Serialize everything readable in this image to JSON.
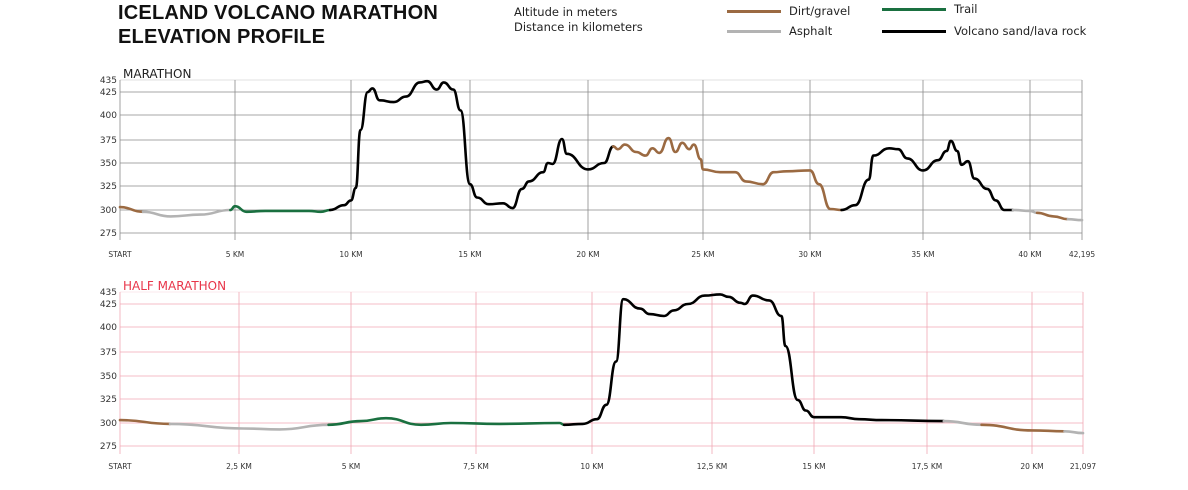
{
  "header": {
    "title_line1": "ICELAND VOLCANO MARATHON",
    "title_line2": "ELEVATION PROFILE",
    "units_line1": "Altitude in meters",
    "units_line2": "Distance in kilometers"
  },
  "legend": [
    {
      "label": "Dirt/gravel",
      "surface": "dirt",
      "color": "#9b6a42"
    },
    {
      "label": "Trail",
      "surface": "trail",
      "color": "#1a7040"
    },
    {
      "label": "Asphalt",
      "surface": "asphalt",
      "color": "#b3b3b3"
    },
    {
      "label": "Volcano sand/lava rock",
      "surface": "lava",
      "color": "#000000"
    }
  ],
  "chart_data": [
    {
      "type": "line",
      "title": "MARATHON",
      "title_color": "#222222",
      "grid_color": "#8a8a8a",
      "grid": true,
      "xlim": [
        0,
        42.195
      ],
      "ylim": [
        275,
        435
      ],
      "y_ticks": [
        435,
        425,
        400,
        375,
        350,
        325,
        300,
        275
      ],
      "x_ticks": [
        {
          "value": 0,
          "label": "START"
        },
        {
          "value": 5,
          "label": "5 KM"
        },
        {
          "value": 10,
          "label": "10 KM"
        },
        {
          "value": 15,
          "label": "15 KM"
        },
        {
          "value": 20,
          "label": "20 KM"
        },
        {
          "value": 25,
          "label": "25 KM"
        },
        {
          "value": 30,
          "label": "30 KM"
        },
        {
          "value": 35,
          "label": "35 KM"
        },
        {
          "value": 40,
          "label": "40 KM"
        },
        {
          "value": 42.195,
          "label": "42,195"
        }
      ],
      "segments": [
        {
          "surface": "dirt",
          "points": [
            [
              0,
              303
            ],
            [
              1.0,
              298
            ]
          ]
        },
        {
          "surface": "asphalt",
          "points": [
            [
              1.0,
              298
            ],
            [
              2.2,
              293
            ],
            [
              3.5,
              295
            ],
            [
              4.8,
              300
            ]
          ]
        },
        {
          "surface": "trail",
          "points": [
            [
              4.8,
              300
            ],
            [
              5,
              304
            ],
            [
              5.5,
              298
            ],
            [
              6.3,
              299
            ],
            [
              7.3,
              299
            ],
            [
              8.2,
              299
            ],
            [
              8.7,
              298
            ],
            [
              9.1,
              300
            ]
          ]
        },
        {
          "surface": "lava",
          "points": [
            [
              9.1,
              300
            ],
            [
              9.7,
              305
            ],
            [
              10,
              310
            ],
            [
              10.2,
              323
            ],
            [
              10.4,
              385
            ],
            [
              10.7,
              425
            ],
            [
              10.9,
              428
            ],
            [
              11.2,
              416
            ],
            [
              11.8,
              414
            ],
            [
              12.3,
              420
            ],
            [
              12.9,
              433
            ],
            [
              13.2,
              434
            ],
            [
              13.6,
              427
            ],
            [
              13.9,
              433
            ],
            [
              14.3,
              427
            ],
            [
              14.6,
              405
            ],
            [
              15,
              327
            ],
            [
              15.3,
              313
            ],
            [
              15.8,
              306
            ],
            [
              16.4,
              307
            ],
            [
              16.8,
              302
            ],
            [
              17.2,
              322
            ],
            [
              17.5,
              330
            ],
            [
              18.1,
              340
            ],
            [
              18.3,
              350
            ],
            [
              18.5,
              349
            ],
            [
              18.9,
              376
            ],
            [
              19.1,
              360
            ],
            [
              20,
              343
            ],
            [
              20.7,
              350
            ],
            [
              21.1,
              368
            ]
          ]
        },
        {
          "surface": "dirt",
          "points": [
            [
              21.1,
              368
            ],
            [
              21.3,
              365
            ],
            [
              21.6,
              370
            ],
            [
              22.1,
              362
            ],
            [
              22.5,
              358
            ],
            [
              22.8,
              366
            ],
            [
              23.1,
              361
            ],
            [
              23.5,
              377
            ],
            [
              23.8,
              362
            ],
            [
              24.1,
              372
            ],
            [
              24.4,
              365
            ],
            [
              24.6,
              370
            ],
            [
              24.9,
              354
            ],
            [
              25.0,
              343
            ],
            [
              25.8,
              340
            ],
            [
              26.5,
              340
            ],
            [
              27,
              330
            ],
            [
              27.8,
              327
            ],
            [
              28.3,
              340
            ],
            [
              28.9,
              341
            ],
            [
              30,
              342
            ],
            [
              30.4,
              327
            ],
            [
              30.9,
              301
            ],
            [
              31.4,
              300
            ]
          ]
        },
        {
          "surface": "lava",
          "points": [
            [
              31.4,
              300
            ],
            [
              32,
              305
            ],
            [
              32.6,
              332
            ],
            [
              32.8,
              358
            ],
            [
              33.5,
              366
            ],
            [
              33.9,
              365
            ],
            [
              34.3,
              355
            ],
            [
              35,
              342
            ],
            [
              35.7,
              353
            ],
            [
              36.1,
              363
            ],
            [
              36.3,
              374
            ],
            [
              36.6,
              363
            ],
            [
              36.8,
              348
            ],
            [
              37.1,
              352
            ],
            [
              37.4,
              333
            ],
            [
              38,
              322
            ],
            [
              38.4,
              310
            ],
            [
              38.8,
              300
            ],
            [
              39.2,
              300
            ]
          ]
        },
        {
          "surface": "asphalt",
          "points": [
            [
              39.2,
              300
            ],
            [
              40,
              299
            ],
            [
              40.3,
              297
            ]
          ]
        },
        {
          "surface": "dirt",
          "points": [
            [
              40.3,
              297
            ],
            [
              41.0,
              293
            ],
            [
              41.6,
              290
            ]
          ]
        },
        {
          "surface": "asphalt",
          "points": [
            [
              41.6,
              290
            ],
            [
              42.195,
              289
            ]
          ]
        }
      ]
    },
    {
      "type": "line",
      "title": "HALF MARATHON",
      "title_color": "#e8364a",
      "grid_color": "#f0a8b4",
      "grid": true,
      "xlim": [
        0,
        21.097
      ],
      "ylim": [
        275,
        435
      ],
      "y_ticks": [
        435,
        425,
        400,
        375,
        350,
        325,
        300,
        275
      ],
      "x_ticks": [
        {
          "value": 0,
          "label": "START"
        },
        {
          "value": 2.5,
          "label": "2,5 KM"
        },
        {
          "value": 5,
          "label": "5 KM"
        },
        {
          "value": 7.5,
          "label": "7,5 KM"
        },
        {
          "value": 10,
          "label": "10 KM"
        },
        {
          "value": 12.5,
          "label": "12,5 KM"
        },
        {
          "value": 15,
          "label": "15 KM"
        },
        {
          "value": 17.5,
          "label": "17,5 KM"
        },
        {
          "value": 20,
          "label": "20 KM"
        },
        {
          "value": 21.097,
          "label": "21,097"
        }
      ],
      "segments": [
        {
          "surface": "dirt",
          "points": [
            [
              0,
              303
            ],
            [
              1.05,
              299
            ]
          ]
        },
        {
          "surface": "asphalt",
          "points": [
            [
              1.05,
              299
            ],
            [
              2.6,
              294
            ],
            [
              3.4,
              293
            ],
            [
              4.5,
              298
            ]
          ]
        },
        {
          "surface": "trail",
          "points": [
            [
              4.5,
              298
            ],
            [
              5.2,
              302
            ],
            [
              5.7,
              305
            ],
            [
              6.4,
              298
            ],
            [
              7.0,
              300
            ],
            [
              8.0,
              299
            ],
            [
              9.3,
              300
            ],
            [
              9.4,
              298
            ]
          ]
        },
        {
          "surface": "lava",
          "points": [
            [
              9.4,
              298
            ],
            [
              9.8,
              299
            ],
            [
              10.1,
              304
            ],
            [
              10.3,
              319
            ],
            [
              10.5,
              365
            ],
            [
              10.65,
              429
            ],
            [
              11,
              420
            ],
            [
              11.2,
              414
            ],
            [
              11.5,
              412
            ],
            [
              11.7,
              418
            ],
            [
              12.0,
              425
            ],
            [
              12.35,
              432
            ],
            [
              12.7,
              433
            ],
            [
              12.9,
              431
            ],
            [
              13.2,
              426
            ],
            [
              13.3,
              425
            ],
            [
              13.5,
              432
            ],
            [
              13.9,
              428
            ],
            [
              14.2,
              412
            ],
            [
              14.3,
              381
            ],
            [
              14.6,
              324
            ],
            [
              14.8,
              313
            ],
            [
              15.0,
              306
            ],
            [
              15.6,
              306
            ],
            [
              16.0,
              304
            ],
            [
              16.5,
              303
            ],
            [
              17.9,
              302
            ]
          ]
        },
        {
          "surface": "asphalt",
          "points": [
            [
              17.9,
              302
            ],
            [
              18.8,
              298
            ]
          ]
        },
        {
          "surface": "dirt",
          "points": [
            [
              18.8,
              298
            ],
            [
              20.0,
              292
            ],
            [
              20.7,
              291
            ]
          ]
        },
        {
          "surface": "asphalt",
          "points": [
            [
              20.7,
              291
            ],
            [
              21.097,
              289
            ]
          ]
        }
      ]
    }
  ]
}
